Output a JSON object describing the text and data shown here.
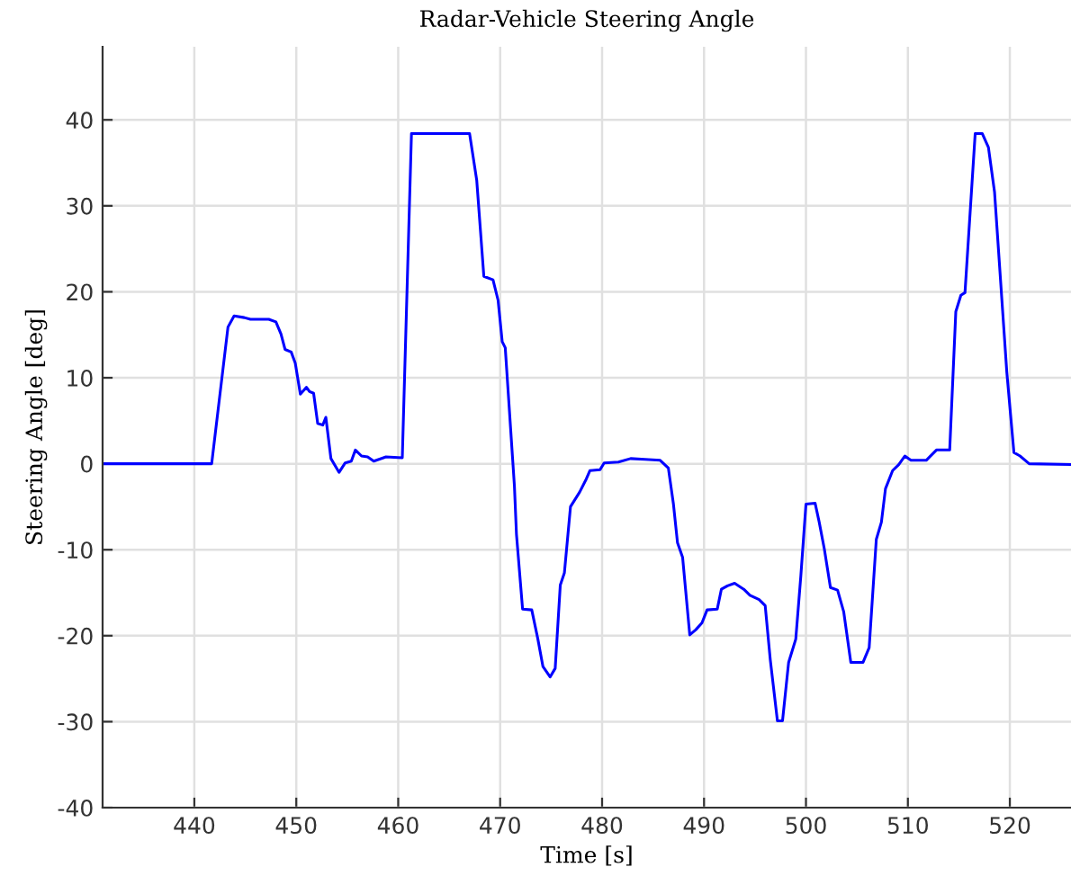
{
  "chart_data": {
    "type": "line",
    "title": "Radar-Vehicle Steering Angle",
    "xlabel": "Time [s]",
    "ylabel": "Steering Angle [deg]",
    "xlim": [
      431,
      526
    ],
    "xticks": [
      440,
      450,
      460,
      470,
      480,
      490,
      500,
      510,
      520
    ],
    "ylim": [
      -40,
      48.5
    ],
    "yticks": [
      -40,
      -30,
      -20,
      -10,
      0,
      10,
      20,
      30,
      40
    ],
    "grid": true,
    "marker": "none",
    "line_style": "solid",
    "series": [
      {
        "color": "#0000ff",
        "x": [
          431,
          441.7,
          443.3,
          443.9,
          444.9,
          445.5,
          447.3,
          448.0,
          448.5,
          448.9,
          449.5,
          449.9,
          450.4,
          451.0,
          451.3,
          451.7,
          452.1,
          452.6,
          452.9,
          453.4,
          454.2,
          454.8,
          455.4,
          455.8,
          456.4,
          457.0,
          457.6,
          458.8,
          460.4,
          461.3,
          467.0,
          467.7,
          468.4,
          469.3,
          469.8,
          470.2,
          470.5,
          471.4,
          471.6,
          472.2,
          473.1,
          473.7,
          474.2,
          474.9,
          475.4,
          475.9,
          476.3,
          476.9,
          477.8,
          478.4,
          478.8,
          479.8,
          480.2,
          481.6,
          482.8,
          484.2,
          485.7,
          486.5,
          487.0,
          487.4,
          487.9,
          488.6,
          489.2,
          489.8,
          490.3,
          491.3,
          491.7,
          492.3,
          493.0,
          493.9,
          494.5,
          495.4,
          496.0,
          496.5,
          497.2,
          497.7,
          498.3,
          499.0,
          499.5,
          500.0,
          500.9,
          501.3,
          501.8,
          502.4,
          503.1,
          503.7,
          504.4,
          505.6,
          506.2,
          506.9,
          507.4,
          507.8,
          508.5,
          509.1,
          509.7,
          510.3,
          511.8,
          512.8,
          514.1,
          514.7,
          515.2,
          515.6,
          516.6,
          517.3,
          517.9,
          518.5,
          519.7,
          520.4,
          521.0,
          521.9,
          526
        ],
        "values": [
          0,
          0,
          15.9,
          17.2,
          17.0,
          16.8,
          16.8,
          16.5,
          15.1,
          13.3,
          13.0,
          11.7,
          8.1,
          8.9,
          8.4,
          8.2,
          4.7,
          4.5,
          5.4,
          0.6,
          -1.0,
          0.1,
          0.3,
          1.6,
          0.9,
          0.8,
          0.3,
          0.8,
          0.7,
          38.4,
          38.4,
          33.0,
          21.8,
          21.4,
          19.0,
          14.2,
          13.5,
          -2.6,
          -8.2,
          -16.9,
          -17.0,
          -20.4,
          -23.6,
          -24.8,
          -23.8,
          -14.1,
          -12.7,
          -5.0,
          -3.3,
          -1.9,
          -0.8,
          -0.7,
          0.1,
          0.2,
          0.6,
          0.5,
          0.4,
          -0.5,
          -4.7,
          -9.2,
          -10.9,
          -19.9,
          -19.3,
          -18.5,
          -17.0,
          -16.9,
          -14.6,
          -14.2,
          -13.9,
          -14.6,
          -15.3,
          -15.8,
          -16.5,
          -22.8,
          -29.9,
          -29.9,
          -23.1,
          -20.4,
          -13.0,
          -4.7,
          -4.6,
          -6.8,
          -9.9,
          -14.4,
          -14.7,
          -17.2,
          -23.1,
          -23.1,
          -21.4,
          -8.8,
          -6.8,
          -2.9,
          -0.8,
          -0.1,
          0.9,
          0.4,
          0.4,
          1.6,
          1.6,
          17.7,
          19.6,
          19.9,
          38.4,
          38.4,
          36.8,
          31.6,
          10.7,
          1.3,
          0.9,
          0.0,
          -0.1
        ]
      }
    ]
  }
}
